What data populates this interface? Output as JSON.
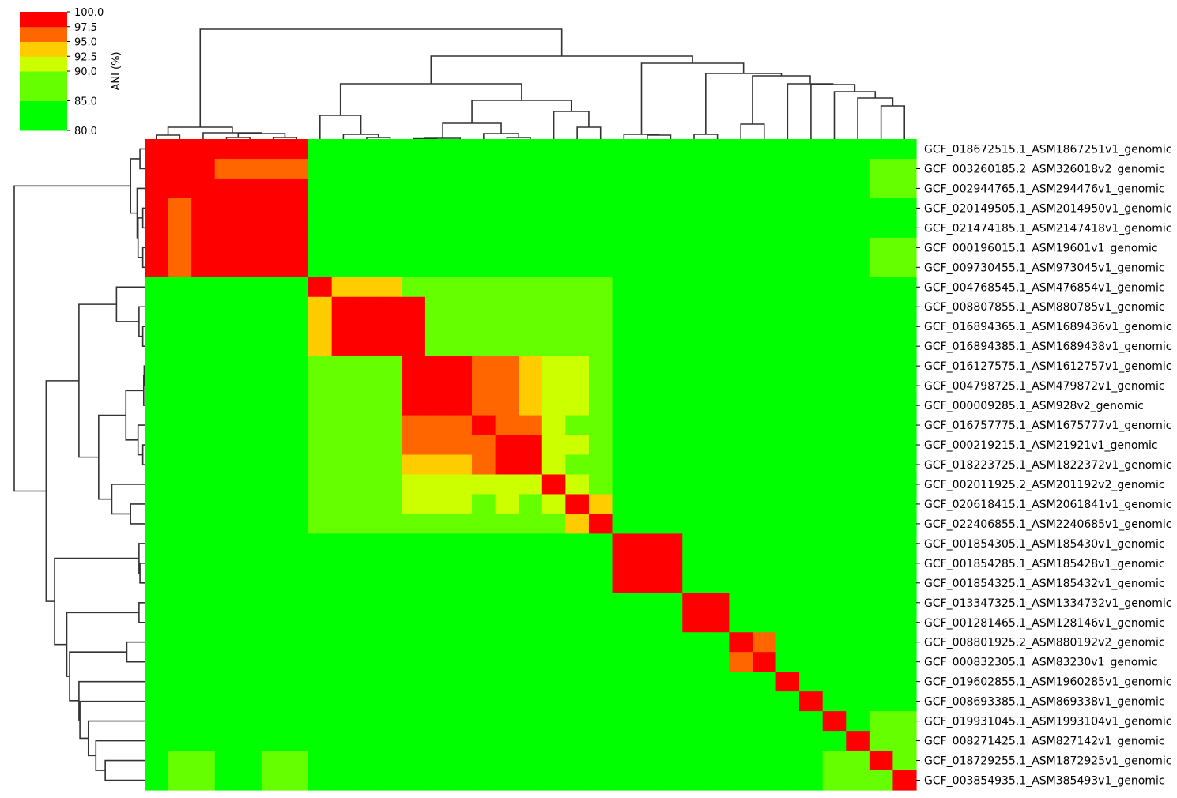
{
  "chart_data": {
    "type": "heatmap",
    "subtype": "clustermap",
    "colorbar": {
      "label": "ANI (%)",
      "range": [
        80,
        100
      ],
      "ticks": [
        "100.0",
        "97.5",
        "95.0",
        "92.5",
        "90.0",
        "85.0",
        "80.0"
      ],
      "tick_values": [
        100,
        97.5,
        95,
        92.5,
        90,
        85,
        80
      ],
      "bins": [
        {
          "range": [
            80,
            85
          ],
          "color": "#00ff00"
        },
        {
          "range": [
            85,
            90
          ],
          "color": "#66ff00"
        },
        {
          "range": [
            90,
            92.5
          ],
          "color": "#ccff00"
        },
        {
          "range": [
            92.5,
            95
          ],
          "color": "#ffcc00"
        },
        {
          "range": [
            95,
            97.5
          ],
          "color": "#ff6600"
        },
        {
          "range": [
            97.5,
            100
          ],
          "color": "#ff0000"
        }
      ]
    },
    "labels": [
      "GCF_018672515.1_ASM1867251v1_genomic",
      "GCF_003260185.2_ASM326018v2_genomic",
      "GCF_002944765.1_ASM294476v1_genomic",
      "GCF_020149505.1_ASM2014950v1_genomic",
      "GCF_021474185.1_ASM2147418v1_genomic",
      "GCF_000196015.1_ASM19601v1_genomic",
      "GCF_009730455.1_ASM973045v1_genomic",
      "GCF_004768545.1_ASM476854v1_genomic",
      "GCF_008807855.1_ASM880785v1_genomic",
      "GCF_016894365.1_ASM1689436v1_genomic",
      "GCF_016894385.1_ASM1689438v1_genomic",
      "GCF_016127575.1_ASM1612757v1_genomic",
      "GCF_004798725.1_ASM479872v1_genomic",
      "GCF_000009285.1_ASM928v2_genomic",
      "GCF_016757775.1_ASM1675777v1_genomic",
      "GCF_000219215.1_ASM21921v1_genomic",
      "GCF_018223725.1_ASM1822372v1_genomic",
      "GCF_002011925.2_ASM201192v2_genomic",
      "GCF_020618415.1_ASM2061841v1_genomic",
      "GCF_022406855.1_ASM2240685v1_genomic",
      "GCF_001854305.1_ASM185430v1_genomic",
      "GCF_001854285.1_ASM185428v1_genomic",
      "GCF_001854325.1_ASM185432v1_genomic",
      "GCF_013347325.1_ASM1334732v1_genomic",
      "GCF_001281465.1_ASM128146v1_genomic",
      "GCF_008801925.2_ASM880192v2_genomic",
      "GCF_000832305.1_ASM83230v1_genomic",
      "GCF_019602855.1_ASM1960285v1_genomic",
      "GCF_008693385.1_ASM869338v1_genomic",
      "GCF_019931045.1_ASM1993104v1_genomic",
      "GCF_008271425.1_ASM827142v1_genomic",
      "GCF_018729255.1_ASM1872925v1_genomic",
      "GCF_003854935.1_ASM385493v1_genomic"
    ],
    "matrix_bin_index_rows": [
      "555555500000000000000000000000000",
      "555444400000000000000000000000011",
      "555555500000000000000000000000011",
      "545555500000000000000000000000000",
      "545555500000000000000000000000000",
      "545555500000000000000000000000011",
      "545555500000000000000000000000011",
      "000000053331111111110000000000000",
      "000000035555111111110000000000000",
      "000000035555111111110000000000000",
      "000000035555111111110000000000000",
      "000000011115554432210000000000000",
      "000000011115554432210000000000000",
      "000000011115554432210000000000000",
      "000000011114445442110000000000000",
      "000000011114444552210000000000000",
      "000000011113334552110000000000000",
      "000000011112222225210000000000000",
      "000000011112221212530000000000000",
      "000000011111111111350000000000000",
      "000000000000000000005550000000000",
      "000000000000000000005550000000000",
      "000000000000000000005550000000000",
      "000000000000000000000005500000000",
      "000000000000000000000005500000000",
      "000000000000000000000000054000000",
      "000000000000000000000000045000000",
      "000000000000000000000000000500000",
      "000000000000000000000000000050000",
      "000000000000000000000000000005011",
      "000000000000000000000000000000511",
      "011001100000000000000000000001151",
      "011001100000000000000000000001115"
    ],
    "dendrogram": "row and column dendrograms (same ordering)"
  }
}
